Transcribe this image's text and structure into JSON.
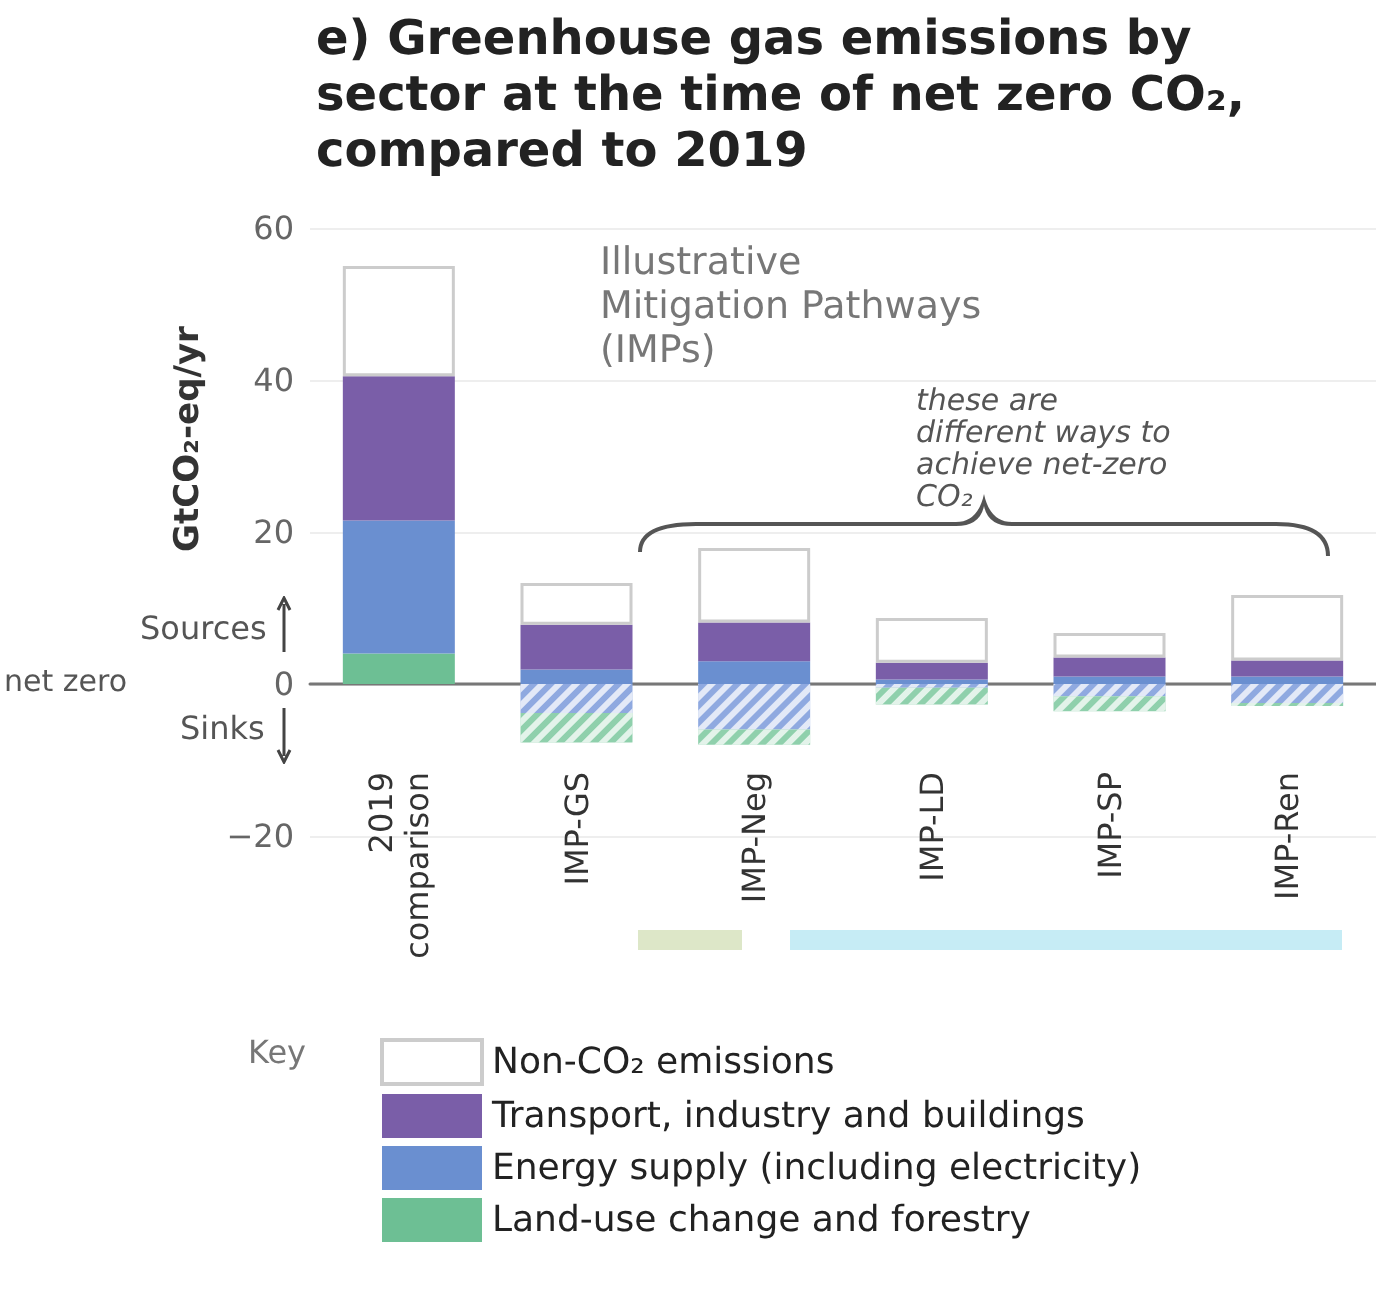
{
  "chart_data": {
    "type": "bar",
    "title": "e) Greenhouse gas emissions by sector at the time of net zero CO₂, compared to 2019",
    "ylabel": "GtCO₂-eq/yr",
    "legend_title": "Key",
    "categories": [
      "2019 comparison",
      "IMP-GS",
      "IMP-Neg",
      "IMP-LD",
      "IMP-SP",
      "IMP-Ren"
    ],
    "stacked": true,
    "series": [
      {
        "name": "Land-use change and forestry",
        "color": "#6dbf94",
        "values": [
          4,
          null,
          null,
          null,
          null,
          null
        ]
      },
      {
        "name": "Energy supply (including electricity)",
        "color": "#6a8fd0",
        "values": [
          17.5,
          1.9,
          3.0,
          0.6,
          1.0,
          1.0
        ]
      },
      {
        "name": "Transport, industry and buildings",
        "color": "#7a5ea8",
        "values": [
          19,
          5.9,
          5.1,
          2.2,
          2.5,
          2.1
        ]
      },
      {
        "name": "Non-CO₂ emissions",
        "color": "#ffffff",
        "values": [
          14.5,
          5.5,
          9.8,
          5.9,
          3.2,
          8.6
        ]
      },
      {
        "color": "#8fa9e0",
        "values": [
          null,
          -3.8,
          -6.0,
          -0.5,
          -1.6,
          -2.5
        ]
      },
      {
        "color": "#8fd0ac",
        "values": [
          null,
          -3.9,
          -2.0,
          -2.2,
          -2.0,
          -0.4
        ]
      }
    ],
    "ylim": [
      -35,
      60
    ],
    "yticks": [
      -20,
      0,
      20,
      40,
      60
    ],
    "grid": "y",
    "legend": "bottom",
    "annotations": [
      "Illustrative Mitigation Pathways (IMPs)",
      "these are different ways to achieve net-zero CO₂",
      "Sources",
      "Sinks",
      "net zero"
    ]
  }
}
